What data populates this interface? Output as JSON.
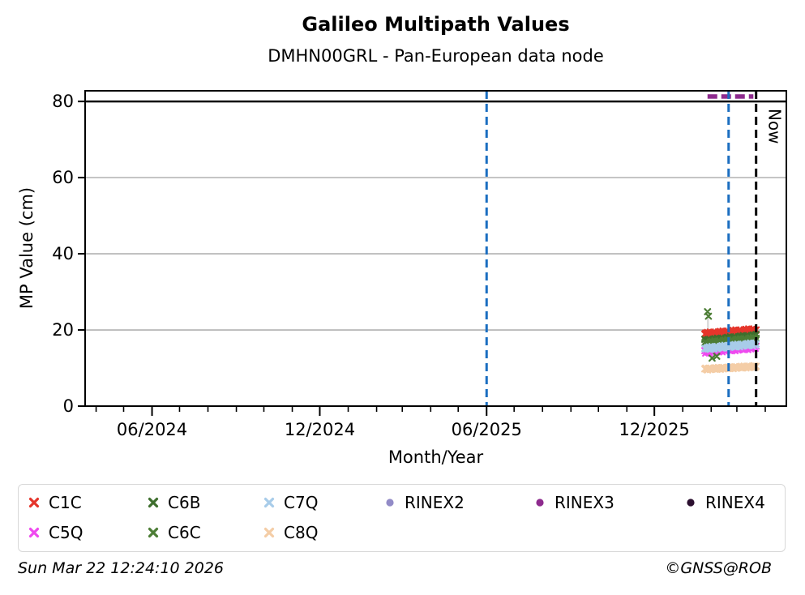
{
  "title": "Galileo Multipath Values",
  "subtitle": "DMHN00GRL - Pan-European data node",
  "footer": {
    "timestamp": "Sun Mar 22 12:24:10 2026",
    "credit": "©GNSS@ROB"
  },
  "axes": {
    "xlabel": "Month/Year",
    "ylabel": "MP Value (cm)",
    "x_domain": [
      "2024-03-20",
      "2026-04-24"
    ],
    "y_domain": [
      0,
      82.8
    ],
    "y_ticks": [
      0,
      20,
      40,
      60,
      80
    ],
    "x_major_ticks": [
      {
        "date": "2024-06-01",
        "label": "06/2024"
      },
      {
        "date": "2024-12-01",
        "label": "12/2024"
      },
      {
        "date": "2025-06-01",
        "label": "06/2025"
      },
      {
        "date": "2025-12-01",
        "label": "12/2025"
      }
    ],
    "grid_color": "#b0b0b0",
    "threshold_line": {
      "y": 80,
      "color": "#000000"
    }
  },
  "annotations": {
    "vlines": [
      {
        "date": "2025-06-01",
        "color": "#1b6ec0",
        "style": "dashed",
        "label": ""
      },
      {
        "date": "2026-02-20",
        "color": "#1b6ec0",
        "style": "dashed",
        "label": ""
      },
      {
        "date": "2026-03-22",
        "color": "#000000",
        "style": "dashed",
        "label": "Now"
      }
    ]
  },
  "chart_data": {
    "type": "scatter",
    "x_start": "2026-01-25",
    "cadence_days": 1,
    "n_points": 57,
    "noise_pattern": [
      0,
      0.5,
      -0.4,
      0.7,
      -0.6,
      0.2,
      0.8,
      -0.3,
      -0.7,
      0.4,
      0.6,
      -0.5,
      0.1,
      -0.2
    ],
    "series": [
      {
        "name": "C1C",
        "color": "#e5352b",
        "marker": "x",
        "value_start": 18.9,
        "value_end": 20.0,
        "noise_scale": 0.55,
        "noise_phase": 0,
        "outliers": []
      },
      {
        "name": "C5Q",
        "color": "#ef49ef",
        "marker": "x",
        "value_start": 14.2,
        "value_end": 15.4,
        "noise_scale": 0.5,
        "noise_phase": 3,
        "outliers": []
      },
      {
        "name": "C6B",
        "color": "#3e6e2d",
        "marker": "x",
        "value_start": 17.1,
        "value_end": 18.4,
        "noise_scale": 0.55,
        "noise_phase": 6,
        "outliers": []
      },
      {
        "name": "C6C",
        "color": "#4c7d35",
        "marker": "x",
        "value_start": 16.4,
        "value_end": 17.6,
        "noise_scale": 0.6,
        "noise_phase": 9,
        "outliers": [
          {
            "day": 3,
            "value": 24.8
          },
          {
            "day": 4,
            "value": 23.6
          },
          {
            "day": 8,
            "value": 12.6
          },
          {
            "day": 13,
            "value": 13.1
          }
        ]
      },
      {
        "name": "C7Q",
        "color": "#a8cce9",
        "marker": "x",
        "value_start": 15.1,
        "value_end": 16.3,
        "noise_scale": 0.5,
        "noise_phase": 12,
        "outliers": []
      },
      {
        "name": "C8Q",
        "color": "#f4cda6",
        "marker": "x",
        "value_start": 9.7,
        "value_end": 10.4,
        "noise_scale": 0.35,
        "noise_phase": 5,
        "outliers": []
      },
      {
        "name": "RINEX2",
        "color": "#928bc7",
        "marker": "circle",
        "segment": null
      },
      {
        "name": "RINEX3",
        "color": "#8e2b8e",
        "marker": "circle",
        "segment": {
          "from": "2026-01-28",
          "to": "2026-03-19",
          "value": 81.3
        }
      },
      {
        "name": "RINEX4",
        "color": "#2c1030",
        "marker": "circle",
        "segment": null
      }
    ],
    "outlier_stems": [
      {
        "date": "2026-01-28",
        "from": 24.8,
        "to": 17.5,
        "color": "#dcdcdc"
      },
      {
        "date": "2026-01-29",
        "from": 23.6,
        "to": 17.2,
        "color": "#dcdcdc"
      }
    ]
  },
  "legend": {
    "items": [
      {
        "label": "C1C",
        "color": "#e5352b",
        "marker": "x",
        "col": 0,
        "row": 0
      },
      {
        "label": "C5Q",
        "color": "#ef49ef",
        "marker": "x",
        "col": 0,
        "row": 1
      },
      {
        "label": "C6B",
        "color": "#3e6e2d",
        "marker": "x",
        "col": 1,
        "row": 0
      },
      {
        "label": "C6C",
        "color": "#4c7d35",
        "marker": "x",
        "col": 1,
        "row": 1
      },
      {
        "label": "C7Q",
        "color": "#a8cce9",
        "marker": "x",
        "col": 2,
        "row": 0
      },
      {
        "label": "C8Q",
        "color": "#f4cda6",
        "marker": "x",
        "col": 2,
        "row": 1
      },
      {
        "label": "RINEX2",
        "color": "#928bc7",
        "marker": "circle",
        "col": 3,
        "row": 0
      },
      {
        "label": "RINEX3",
        "color": "#8e2b8e",
        "marker": "circle",
        "col": 4,
        "row": 0
      },
      {
        "label": "RINEX4",
        "color": "#2c1030",
        "marker": "circle",
        "col": 5,
        "row": 0
      }
    ]
  }
}
